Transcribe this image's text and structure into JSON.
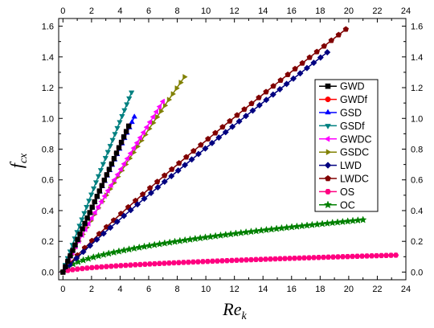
{
  "chart_data": {
    "type": "line",
    "title": "",
    "xlabel": {
      "main": "Re",
      "sub": "k"
    },
    "ylabel": {
      "main": "f",
      "sub": "cx"
    },
    "xlim": [
      -0.3,
      24
    ],
    "ylim": [
      -0.05,
      1.65
    ],
    "xticks": [
      0,
      2,
      4,
      6,
      8,
      10,
      12,
      14,
      16,
      18,
      20,
      22,
      24
    ],
    "yticks": [
      0.0,
      0.2,
      0.4,
      0.6,
      0.8,
      1.0,
      1.2,
      1.4,
      1.6
    ],
    "xtick_labels": [
      "0",
      "2",
      "4",
      "6",
      "8",
      "10",
      "12",
      "14",
      "16",
      "18",
      "20",
      "22",
      "24"
    ],
    "ytick_labels": [
      "0.0",
      "0.2",
      "0.4",
      "0.6",
      "0.8",
      "1.0",
      "1.2",
      "1.4",
      "1.6"
    ],
    "grid": false,
    "legend_position": "right",
    "series": [
      {
        "name": "GWD",
        "color": "#000000",
        "marker": "square",
        "xmax": 4.6,
        "ymax": 0.95,
        "power": 1.0,
        "n": 28
      },
      {
        "name": "GWDf",
        "color": "#ff0000",
        "marker": "circle",
        "xmax": 4.6,
        "ymax": 0.95,
        "power": 1.0,
        "n": 28
      },
      {
        "name": "GSD",
        "color": "#0000ff",
        "marker": "triangle-up",
        "xmax": 5.0,
        "ymax": 1.01,
        "power": 1.0,
        "n": 30
      },
      {
        "name": "GSDf",
        "color": "#008080",
        "marker": "triangle-down",
        "xmax": 4.8,
        "ymax": 1.17,
        "power": 0.95,
        "n": 30
      },
      {
        "name": "GWDC",
        "color": "#ff00ff",
        "marker": "triangle-left",
        "xmax": 7.0,
        "ymax": 1.11,
        "power": 0.93,
        "n": 32
      },
      {
        "name": "GSDC",
        "color": "#808000",
        "marker": "triangle-right",
        "xmax": 8.5,
        "ymax": 1.27,
        "power": 0.9,
        "n": 32
      },
      {
        "name": "LWD",
        "color": "#000080",
        "marker": "diamond",
        "xmax": 18.5,
        "ymax": 1.43,
        "power": 0.93,
        "n": 40
      },
      {
        "name": "LWDC",
        "color": "#800000",
        "marker": "pentagon",
        "xmax": 19.8,
        "ymax": 1.58,
        "power": 0.9,
        "n": 40
      },
      {
        "name": "OS",
        "color": "#ff0080",
        "marker": "hexagon",
        "xmax": 23.3,
        "ymax": 0.11,
        "power": 0.55,
        "n": 70
      },
      {
        "name": "OC",
        "color": "#008000",
        "marker": "star",
        "xmax": 21.0,
        "ymax": 0.34,
        "power": 0.55,
        "n": 60
      }
    ]
  }
}
